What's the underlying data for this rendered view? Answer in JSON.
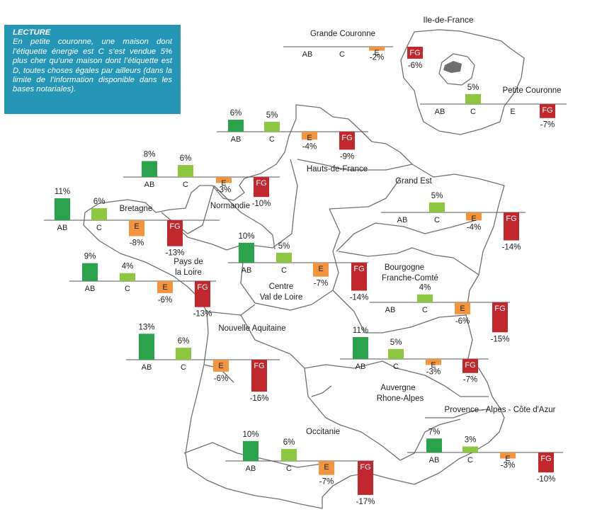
{
  "lecture": {
    "title": "LECTURE",
    "text": "En petite couronne, une maison dont l’étiquette énergie est C s’est vendue 5% plus cher qu’une maison dont l’étiquette est D, toutes choses égales par ailleurs (dans la limite de l’information disponible dans les bases notariales)."
  },
  "colors": {
    "AB": "#2ba24c",
    "C": "#8dc63f",
    "E": "#f3953f",
    "FG": "#c1272d",
    "map": "#707070",
    "paris": "#6d6e71"
  },
  "idf_label": "Ile-de-France",
  "chart_data": {
    "type": "bar",
    "categories": [
      "AB",
      "C",
      "E",
      "FG"
    ],
    "series": [
      {
        "name": "Grande Couronne",
        "values": [
          null,
          null,
          -2,
          -6
        ],
        "value_labels": [
          "",
          "",
          "-2%",
          "-6%"
        ]
      },
      {
        "name": "Petite Couronne",
        "values": [
          null,
          5,
          null,
          -7
        ],
        "value_labels": [
          "",
          "5%",
          "",
          "-7%"
        ]
      },
      {
        "name": "Hauts-de-France",
        "values": [
          6,
          5,
          -4,
          -9
        ],
        "value_labels": [
          "6%",
          "5%",
          "-4%",
          "-9%"
        ]
      },
      {
        "name": "Normandie",
        "values": [
          8,
          6,
          -3,
          -10
        ],
        "value_labels": [
          "8%",
          "6%",
          "-3%",
          "-10%"
        ]
      },
      {
        "name": "Bretagne",
        "values": [
          11,
          6,
          -8,
          -13
        ],
        "value_labels": [
          "11%",
          "6%",
          "-8%",
          "-13%"
        ]
      },
      {
        "name": "Grand Est",
        "values": [
          null,
          5,
          -4,
          -14
        ],
        "value_labels": [
          "",
          "5%",
          "-4%",
          "-14%"
        ]
      },
      {
        "name": "Centre Val de Loire",
        "values": [
          10,
          5,
          -7,
          -14
        ],
        "value_labels": [
          "10%",
          "5%",
          "-7%",
          "-14%"
        ]
      },
      {
        "name": "Pays de la Loire",
        "values": [
          9,
          4,
          -6,
          -13
        ],
        "value_labels": [
          "9%",
          "4%",
          "-6%",
          "-13%"
        ]
      },
      {
        "name": "Bourgogne Franche-Comté",
        "values": [
          null,
          4,
          -6,
          -15
        ],
        "value_labels": [
          "",
          "4%",
          "-6%",
          "-15%"
        ]
      },
      {
        "name": "Nouvelle Aquitaine",
        "values": [
          13,
          6,
          -6,
          -16
        ],
        "value_labels": [
          "13%",
          "6%",
          "-6%",
          "-16%"
        ]
      },
      {
        "name": "Auvergne Rhone-Alpes",
        "values": [
          11,
          5,
          -3,
          -7
        ],
        "value_labels": [
          "11%",
          "5%",
          "-3%",
          "-7%"
        ]
      },
      {
        "name": "Provence - Alpes - Côte d'Azur",
        "values": [
          7,
          3,
          -3,
          -10
        ],
        "value_labels": [
          "7%",
          "3%",
          "-3%",
          "-10%"
        ]
      },
      {
        "name": "Occitanie",
        "values": [
          10,
          6,
          -7,
          -17
        ],
        "value_labels": [
          "10%",
          "6%",
          "-7%",
          "-17%"
        ]
      }
    ],
    "title": "",
    "xlabel": "",
    "ylabel": "",
    "grid": false,
    "legend": "none"
  }
}
